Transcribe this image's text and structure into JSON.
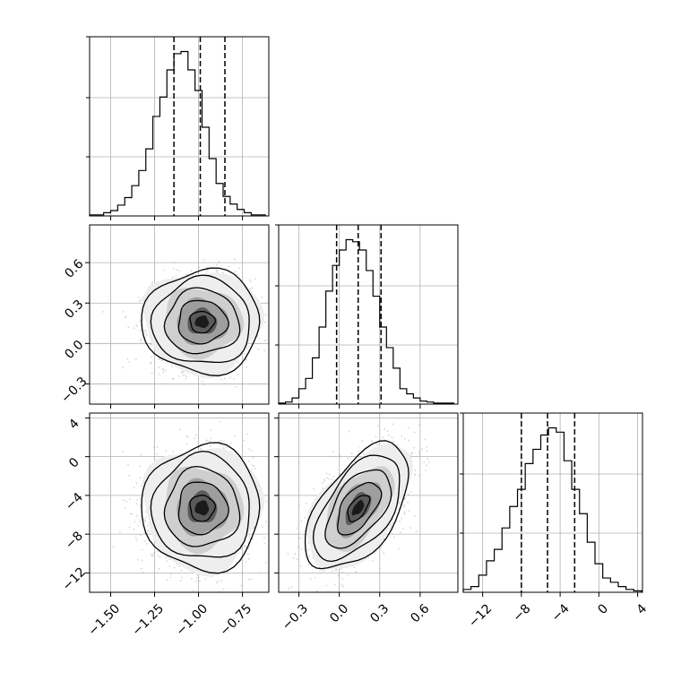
{
  "chart_data": {
    "type": "corner",
    "params": [
      {
        "range": [
          -1.62,
          -0.6
        ],
        "ticks": [
          -1.5,
          -1.25,
          -1.0,
          -0.75
        ],
        "tick_labels": [
          "−1.50",
          "−1.25",
          "−1.00",
          "−0.75"
        ],
        "quantiles": [
          -1.14,
          -0.99,
          -0.85
        ],
        "hist": {
          "edges": [
            -1.62,
            -1.58,
            -1.54,
            -1.5,
            -1.46,
            -1.42,
            -1.38,
            -1.34,
            -1.3,
            -1.26,
            -1.22,
            -1.18,
            -1.14,
            -1.1,
            -1.06,
            -1.02,
            -0.98,
            -0.94,
            -0.9,
            -0.86,
            -0.82,
            -0.78,
            -0.74,
            -0.7,
            -0.66,
            -0.62
          ],
          "counts": [
            1,
            1,
            3,
            5,
            10,
            17,
            28,
            42,
            62,
            92,
            110,
            135,
            150,
            152,
            135,
            116,
            82,
            53,
            30,
            18,
            11,
            6,
            3,
            1,
            1
          ]
        }
      },
      {
        "range": [
          -0.45,
          0.88
        ],
        "ticks": [
          -0.3,
          0.0,
          0.3,
          0.6
        ],
        "tick_labels": [
          "−0.3",
          "0.0",
          "0.3",
          "0.6"
        ],
        "quantiles": [
          -0.02,
          0.14,
          0.31
        ],
        "hist": {
          "edges": [
            -0.45,
            -0.4,
            -0.35,
            -0.3,
            -0.25,
            -0.2,
            -0.15,
            -0.1,
            -0.05,
            0.0,
            0.05,
            0.1,
            0.15,
            0.2,
            0.25,
            0.3,
            0.35,
            0.4,
            0.45,
            0.5,
            0.55,
            0.6,
            0.65,
            0.7,
            0.75,
            0.8,
            0.85
          ],
          "counts": [
            1,
            2,
            6,
            15,
            25,
            45,
            75,
            110,
            135,
            150,
            160,
            158,
            150,
            130,
            105,
            75,
            55,
            35,
            15,
            10,
            6,
            3,
            2,
            1,
            1,
            1
          ]
        }
      },
      {
        "range": [
          -14,
          4.5
        ],
        "ticks": [
          -12,
          -8,
          -4,
          0,
          4
        ],
        "tick_labels": [
          "−12",
          "−8",
          "−4",
          "0",
          "4"
        ],
        "quantiles": [
          -8.0,
          -5.3,
          -2.5
        ],
        "hist": {
          "edges": [
            -14.0,
            -13.2,
            -12.4,
            -11.6,
            -10.8,
            -10.0,
            -9.2,
            -8.4,
            -7.6,
            -6.8,
            -6.0,
            -5.2,
            -4.4,
            -3.6,
            -2.8,
            -2.0,
            -1.2,
            -0.4,
            0.4,
            1.2,
            2.0,
            2.8,
            3.6,
            4.4
          ],
          "counts": [
            2,
            4,
            12,
            22,
            30,
            45,
            60,
            72,
            90,
            100,
            110,
            115,
            112,
            92,
            72,
            55,
            35,
            20,
            10,
            7,
            4,
            2,
            1
          ]
        }
      }
    ],
    "pairs": [
      {
        "x": 0,
        "y": 1,
        "center": [
          -0.98,
          0.16
        ],
        "sd": [
          0.14,
          0.16
        ],
        "rho": 0.0
      },
      {
        "x": 0,
        "y": 2,
        "center": [
          -0.98,
          -5.3
        ],
        "sd": [
          0.14,
          2.7
        ],
        "rho": 0.0
      },
      {
        "x": 1,
        "y": 2,
        "center": [
          0.14,
          -5.3
        ],
        "sd": [
          0.16,
          2.7
        ],
        "rho": 0.55
      }
    ],
    "grid": true
  }
}
